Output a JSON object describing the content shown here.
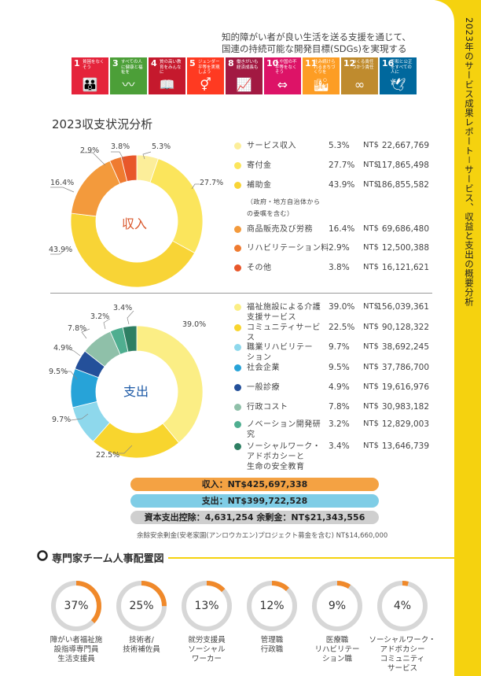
{
  "band": {
    "title": "2023年のサービス成果レポート－サービス、収益と支出の概要分析"
  },
  "header": {
    "line1": "知的障がい者が良い生活を送る支援を通じて、",
    "line2": "国連の持続可能な開発目標(SDGs)を実現する"
  },
  "sdgs": [
    {
      "num": "1",
      "label": "貧困をなくそう",
      "color": "#e5243b",
      "icon": "people-icon"
    },
    {
      "num": "3",
      "label": "すべての人に健康と福祉を",
      "color": "#4c9f38",
      "icon": "heartbeat-icon"
    },
    {
      "num": "4",
      "label": "質の高い教育をみんなに",
      "color": "#c5192d",
      "icon": "book-icon"
    },
    {
      "num": "5",
      "label": "ジェンダー平等を実現しよう",
      "color": "#ff3a21",
      "icon": "gender-icon"
    },
    {
      "num": "8",
      "label": "働きがいも経済成長も",
      "color": "#a21942",
      "icon": "growth-icon"
    },
    {
      "num": "10",
      "label": "人や国の不平等をなくそう",
      "color": "#dd1367",
      "icon": "equality-icon"
    },
    {
      "num": "11",
      "label": "住み続けられるまちづくりを",
      "color": "#fd9d24",
      "icon": "city-icon"
    },
    {
      "num": "12",
      "label": "つくる責任つかう責任",
      "color": "#bf8b2e",
      "icon": "infinity-icon"
    },
    {
      "num": "16",
      "label": "平和と公正をすべての人に",
      "color": "#00689d",
      "icon": "dove-icon"
    }
  ],
  "section_title": "2023収支状況分析",
  "chart_data": [
    {
      "type": "pie",
      "title": "収入",
      "categories": [
        "サービス収入",
        "寄付金",
        "補助金",
        "商品販売及び労務",
        "リハビリテーション料",
        "その他"
      ],
      "values": [
        5.3,
        27.7,
        43.9,
        16.4,
        2.9,
        3.8
      ],
      "value_labels": [
        "5.3%",
        "27.7%",
        "43.9%",
        "16.4%",
        "2.9%",
        "3.8%"
      ],
      "colors": [
        "#fcee9a",
        "#fbe55c",
        "#f8d436",
        "#f39a3c",
        "#ef7b30",
        "#e8572a"
      ]
    },
    {
      "type": "pie",
      "title": "支出",
      "categories": [
        "福祉施設による介護支援サービス",
        "コミュニティサービス",
        "職業リハビリテーション",
        "社会企業",
        "一般診療",
        "行政コスト",
        "ノベーション開発研究",
        "ソーシャルワーク・アドボカシーと生命の安全教育"
      ],
      "values": [
        39.0,
        22.5,
        9.7,
        9.5,
        4.9,
        7.8,
        3.2,
        3.4
      ],
      "value_labels": [
        "39.0%",
        "22.5%",
        "9.7%",
        "9.5%",
        "4.9%",
        "7.8%",
        "3.2%",
        "3.4%"
      ],
      "colors": [
        "#fbee85",
        "#f8d52e",
        "#8ed8ec",
        "#27a3d8",
        "#24509a",
        "#8fc0a9",
        "#4fae90",
        "#2e7f63"
      ]
    }
  ],
  "income_legend": [
    {
      "label1": "サービス収入",
      "label2": "",
      "pct": "5.3%",
      "cur": "NT$",
      "amount": "22,667,769"
    },
    {
      "label1": "寄付金",
      "label2": "",
      "pct": "27.7%",
      "cur": "NT$",
      "amount": "117,865,498"
    },
    {
      "label1": "補助金",
      "label2": "",
      "pct": "43.9%",
      "cur": "NT$",
      "amount": "186,855,582"
    },
    {
      "label1": "商品販売及び労務",
      "label2": "",
      "pct": "16.4%",
      "cur": "NT$",
      "amount": "69,686,480"
    },
    {
      "label1": "リハビリテーション料",
      "label2": "",
      "pct": "2.9%",
      "cur": "NT$",
      "amount": "12,500,388"
    },
    {
      "label1": "その他",
      "label2": "",
      "pct": "3.8%",
      "cur": "NT$",
      "amount": "16,121,621"
    }
  ],
  "subsidy_note1": "（政府・地方自治体から",
  "subsidy_note2": "の委嘱を含む）",
  "expense_legend": [
    {
      "label1": "福祉施設による介護",
      "label2": "支援サービス",
      "pct": "39.0%",
      "cur": "NT$",
      "amount": "156,039,361"
    },
    {
      "label1": "コミュニティサービ",
      "label2": "ス",
      "pct": "22.5%",
      "cur": "NT$",
      "amount": "90,128,322"
    },
    {
      "label1": "職業リハビリテー",
      "label2": "ション",
      "pct": "9.7%",
      "cur": "NT$",
      "amount": "38,692,245"
    },
    {
      "label1": "社会企業",
      "label2": "",
      "pct": "9.5%",
      "cur": "NT$",
      "amount": "37,786,700"
    },
    {
      "label1": "一般診療",
      "label2": "",
      "pct": "4.9%",
      "cur": "NT$",
      "amount": "19,616,976"
    },
    {
      "label1": "行政コスト",
      "label2": "",
      "pct": "7.8%",
      "cur": "NT$",
      "amount": "30,983,182"
    },
    {
      "label1": "ノベーション開発研",
      "label2": "究",
      "pct": "3.2%",
      "cur": "NT$",
      "amount": "12,829,003"
    },
    {
      "label1": "ソーシャルワーク・",
      "label2": "アドボカシーと",
      "pct": "3.4%",
      "cur": "NT$",
      "amount": "13,646,739"
    }
  ],
  "expense_last_line3": "生命の安全教育",
  "summary": {
    "income": "収入：NT$425,697,338",
    "expense": "支出：NT$399,722,528",
    "balance": "資本支出控除：4,631,254  余剰金：NT$21,343,556",
    "income_color": "#f4a243",
    "expense_color": "#7fcde6",
    "balance_color": "#cfcfcf"
  },
  "note": "余餘安余剰金(安老家園(アンロウカエン)プロジェクト募金を含む)  NT$14,660,000",
  "team": {
    "title": "専門家チーム人事配置図",
    "items": [
      {
        "pct": "37%",
        "value": 0.37,
        "l1": "障がい者福祉施",
        "l2": "設指導専門員",
        "l3": "生活支援員"
      },
      {
        "pct": "25%",
        "value": 0.25,
        "l1": "技術者/",
        "l2": "技術補佐員",
        "l3": ""
      },
      {
        "pct": "13%",
        "value": 0.13,
        "l1": "就労支援員",
        "l2": "ソーシャル",
        "l3": "ワーカー"
      },
      {
        "pct": "12%",
        "value": 0.12,
        "l1": "管理職",
        "l2": "行政職",
        "l3": ""
      },
      {
        "pct": "9%",
        "value": 0.09,
        "l1": "医療職",
        "l2": "リハビリテー",
        "l3": "ション職"
      },
      {
        "pct": "4%",
        "value": 0.04,
        "l1": "ソーシャルワーク・",
        "l2": "アドボカシー",
        "l3": "コミュニティ",
        "l4": "サービス"
      }
    ]
  }
}
